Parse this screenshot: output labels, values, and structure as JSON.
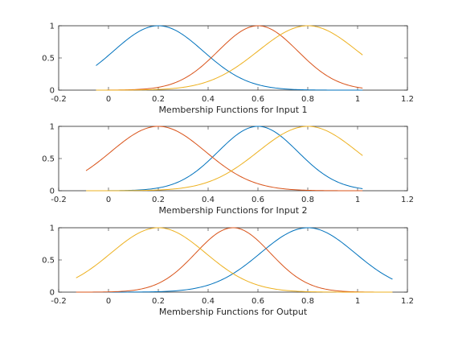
{
  "chart_data": [
    {
      "type": "line",
      "xlabel": "Membership Functions for Input 1",
      "xlim": [
        -0.2,
        1.2
      ],
      "ylim": [
        0,
        1
      ],
      "xticks": [
        "-0.2",
        "0",
        "0.2",
        "0.4",
        "0.6",
        "0.8",
        "1",
        "1.2"
      ],
      "yticks": [
        "0",
        "0.5",
        "1"
      ],
      "grid": false,
      "series": [
        {
          "color": "#0072bd",
          "mf": "gaussian",
          "center": 0.2,
          "sigma": 0.18,
          "range": [
            -0.05,
            1.02
          ]
        },
        {
          "color": "#d95319",
          "mf": "gaussian",
          "center": 0.6,
          "sigma": 0.16,
          "range": [
            -0.05,
            1.02
          ]
        },
        {
          "color": "#edb120",
          "mf": "gaussian",
          "center": 0.8,
          "sigma": 0.2,
          "range": [
            -0.05,
            1.02
          ]
        }
      ]
    },
    {
      "type": "line",
      "xlabel": "Membership Functions for Input 2",
      "xlim": [
        -0.2,
        1.2
      ],
      "ylim": [
        0,
        1
      ],
      "xticks": [
        "-0.2",
        "0",
        "0.2",
        "0.4",
        "0.6",
        "0.8",
        "1",
        "1.2"
      ],
      "yticks": [
        "0",
        "0.5",
        "1"
      ],
      "grid": false,
      "series": [
        {
          "color": "#0072bd",
          "mf": "gaussian",
          "center": 0.6,
          "sigma": 0.16,
          "range": [
            -0.09,
            1.02
          ]
        },
        {
          "color": "#d95319",
          "mf": "gaussian",
          "center": 0.2,
          "sigma": 0.19,
          "range": [
            -0.09,
            1.02
          ]
        },
        {
          "color": "#edb120",
          "mf": "gaussian",
          "center": 0.8,
          "sigma": 0.2,
          "range": [
            -0.09,
            1.02
          ]
        }
      ]
    },
    {
      "type": "line",
      "xlabel": "Membership Functions for Output",
      "xlim": [
        -0.2,
        1.2
      ],
      "ylim": [
        0,
        1
      ],
      "xticks": [
        "-0.2",
        "0",
        "0.2",
        "0.4",
        "0.6",
        "0.8",
        "1",
        "1.2"
      ],
      "yticks": [
        "0",
        "0.5",
        "1"
      ],
      "grid": false,
      "series": [
        {
          "color": "#0072bd",
          "mf": "gaussian",
          "center": 0.8,
          "sigma": 0.19,
          "range": [
            -0.13,
            1.14
          ]
        },
        {
          "color": "#d95319",
          "mf": "gaussian",
          "center": 0.5,
          "sigma": 0.15,
          "range": [
            -0.13,
            1.14
          ]
        },
        {
          "color": "#edb120",
          "mf": "gaussian",
          "center": 0.2,
          "sigma": 0.19,
          "range": [
            -0.13,
            1.14
          ]
        }
      ]
    }
  ]
}
